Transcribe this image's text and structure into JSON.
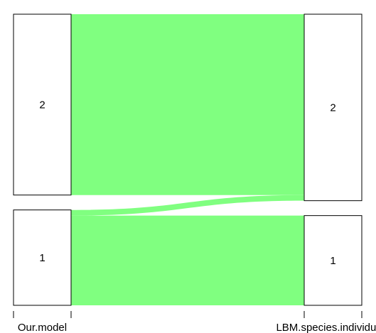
{
  "chart_data": {
    "type": "alluvial",
    "axes": [
      {
        "label": "Our.model",
        "categories": [
          "2",
          "1"
        ]
      },
      {
        "label": "LBM.species.individuals",
        "categories": [
          "2",
          "1"
        ]
      }
    ],
    "flows": [
      {
        "from": "2",
        "to": "2",
        "value": 256
      },
      {
        "from": "1",
        "to": "2",
        "value": 8
      },
      {
        "from": "1",
        "to": "1",
        "value": 127
      }
    ],
    "totals": {
      "Our.model": {
        "2": 256,
        "1": 135
      },
      "LBM.species.individuals": {
        "2": 264,
        "1": 127
      }
    },
    "flow_color": "#80FF80",
    "box_fill": "#FFFFFF",
    "box_stroke": "#000000"
  }
}
